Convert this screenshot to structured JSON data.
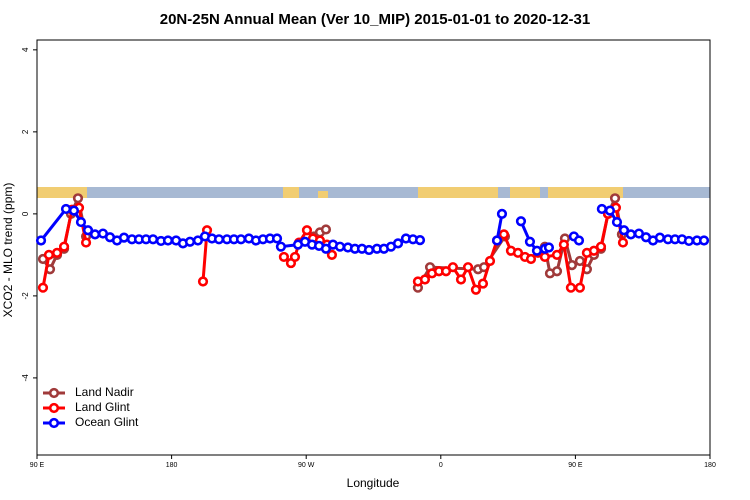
{
  "chart_data": {
    "type": "line",
    "title": "20N-25N Annual Mean (Ver 10_MIP)   2015-01-01 to 2020-12-31",
    "x_label": "Longitude",
    "y_label": "XCO2 - MLO trend (ppm)",
    "xlim": [
      90,
      540
    ],
    "ylim": [
      -5.88,
      4.24
    ],
    "xticks": [
      {
        "value": 90,
        "label": "90 E"
      },
      {
        "value": 180,
        "label": "180"
      },
      {
        "value": 270,
        "label": "90 W"
      },
      {
        "value": 360,
        "label": "0"
      },
      {
        "value": 450,
        "label": "90 E"
      },
      {
        "value": 540,
        "label": "180"
      }
    ],
    "yticks": [
      -4,
      -2,
      0,
      2,
      4
    ],
    "legend": "bottom-left",
    "series": [
      {
        "name": "Land Nadir",
        "color": "#a03a3a",
        "x": [
          94,
          98.7,
          103.4,
          108.1,
          112.7,
          117.4,
          122.8,
          null,
          275.2,
          279.2,
          283.2,
          null,
          344.7,
          352.8,
          384.9,
          388.9,
          402.9,
          null,
          429.6,
          433,
          437.7,
          443,
          447.7,
          453,
          457.7,
          462.4,
          467.1,
          471.8,
          476.5,
          481.1
        ],
        "values": [
          -1.1,
          -1.35,
          -1.0,
          -0.85,
          0.0,
          0.38,
          -0.55,
          null,
          -0.55,
          -0.45,
          -0.38,
          null,
          -1.8,
          -1.3,
          -1.35,
          -1.3,
          -0.55,
          null,
          -0.8,
          -1.45,
          -1.4,
          -0.6,
          -1.25,
          -1.15,
          -1.35,
          -1.0,
          -0.85,
          0.0,
          0.38,
          -0.5
        ]
      },
      {
        "name": "Land Glint",
        "color": "#ff0000",
        "x": [
          94,
          98,
          103.4,
          108.1,
          113.4,
          118.1,
          122.8,
          null,
          201,
          203.7,
          null,
          255.1,
          259.8,
          262.5,
          265.2,
          270.5,
          274.5,
          279.2,
          283.9,
          287.2,
          null,
          344.7,
          349.4,
          354.1,
          358.8,
          363.5,
          368.1,
          373.5,
          378.2,
          383.5,
          388.2,
          392.9,
          397.6,
          402.2,
          406.9,
          411.6,
          416.3,
          420.3,
          425,
          429.6,
          437.7,
          442.3,
          447,
          453,
          457.7,
          462.4,
          467.1,
          471.8,
          477.1,
          481.8
        ],
        "values": [
          -1.8,
          -1.0,
          -0.95,
          -0.8,
          0.1,
          0.15,
          -0.7,
          null,
          -1.65,
          -0.4,
          null,
          -1.05,
          -1.2,
          -1.05,
          -0.7,
          -0.4,
          -0.6,
          -0.65,
          -0.75,
          -1.0,
          null,
          -1.65,
          -1.6,
          -1.45,
          -1.4,
          -1.4,
          -1.3,
          -1.6,
          -1.3,
          -1.85,
          -1.7,
          -1.15,
          -0.65,
          -0.5,
          -0.9,
          -0.95,
          -1.05,
          -1.1,
          -0.95,
          -1.05,
          -1.0,
          -0.75,
          -1.8,
          -1.8,
          -0.95,
          -0.9,
          -0.8,
          0.0,
          0.15,
          -0.7
        ]
      },
      {
        "name": "Ocean Glint",
        "color": "#0000ff",
        "x": [
          92.7,
          109.4,
          114.7,
          119.4,
          124.1,
          128.8,
          134.1,
          138.8,
          143.5,
          148.2,
          153.5,
          158.2,
          162.9,
          167.6,
          172.9,
          177.6,
          183,
          187.6,
          192.3,
          197.6,
          202.3,
          207,
          211.7,
          217,
          221.7,
          226.4,
          231.7,
          236.4,
          241.1,
          245.8,
          250.5,
          253.1,
          264.5,
          269.2,
          273.9,
          278.6,
          283.2,
          287.9,
          292.6,
          297.9,
          302.6,
          307.3,
          312,
          317.3,
          322,
          326.7,
          331.4,
          336.7,
          341.4,
          346.1,
          null,
          397.6,
          400.9,
          null,
          413.6,
          419.6,
          424.3,
          429.6,
          432.3,
          null,
          449,
          452.4,
          null,
          467.7,
          473.1,
          477.8,
          482.5,
          487.1,
          492.5,
          497.2,
          501.9,
          506.5,
          511.9,
          516.6,
          521.3,
          525.9,
          531.3,
          536
        ],
        "values": [
          -0.65,
          0.12,
          0.08,
          -0.2,
          -0.4,
          -0.5,
          -0.48,
          -0.57,
          -0.65,
          -0.58,
          -0.62,
          -0.62,
          -0.62,
          -0.62,
          -0.66,
          -0.65,
          -0.65,
          -0.72,
          -0.68,
          -0.65,
          -0.55,
          -0.6,
          -0.62,
          -0.62,
          -0.62,
          -0.62,
          -0.6,
          -0.65,
          -0.62,
          -0.6,
          -0.6,
          -0.8,
          -0.75,
          -0.68,
          -0.75,
          -0.78,
          -0.85,
          -0.75,
          -0.8,
          -0.82,
          -0.85,
          -0.85,
          -0.88,
          -0.85,
          -0.85,
          -0.8,
          -0.72,
          -0.6,
          -0.62,
          -0.64,
          null,
          -0.65,
          0.0,
          null,
          -0.18,
          -0.68,
          -0.9,
          -0.85,
          -0.82,
          null,
          -0.55,
          -0.65,
          null,
          0.12,
          0.08,
          -0.2,
          -0.4,
          -0.5,
          -0.48,
          -0.57,
          -0.65,
          -0.58,
          -0.62,
          -0.62,
          -0.62,
          -0.66,
          -0.65,
          -0.65
        ]
      }
    ]
  }
}
